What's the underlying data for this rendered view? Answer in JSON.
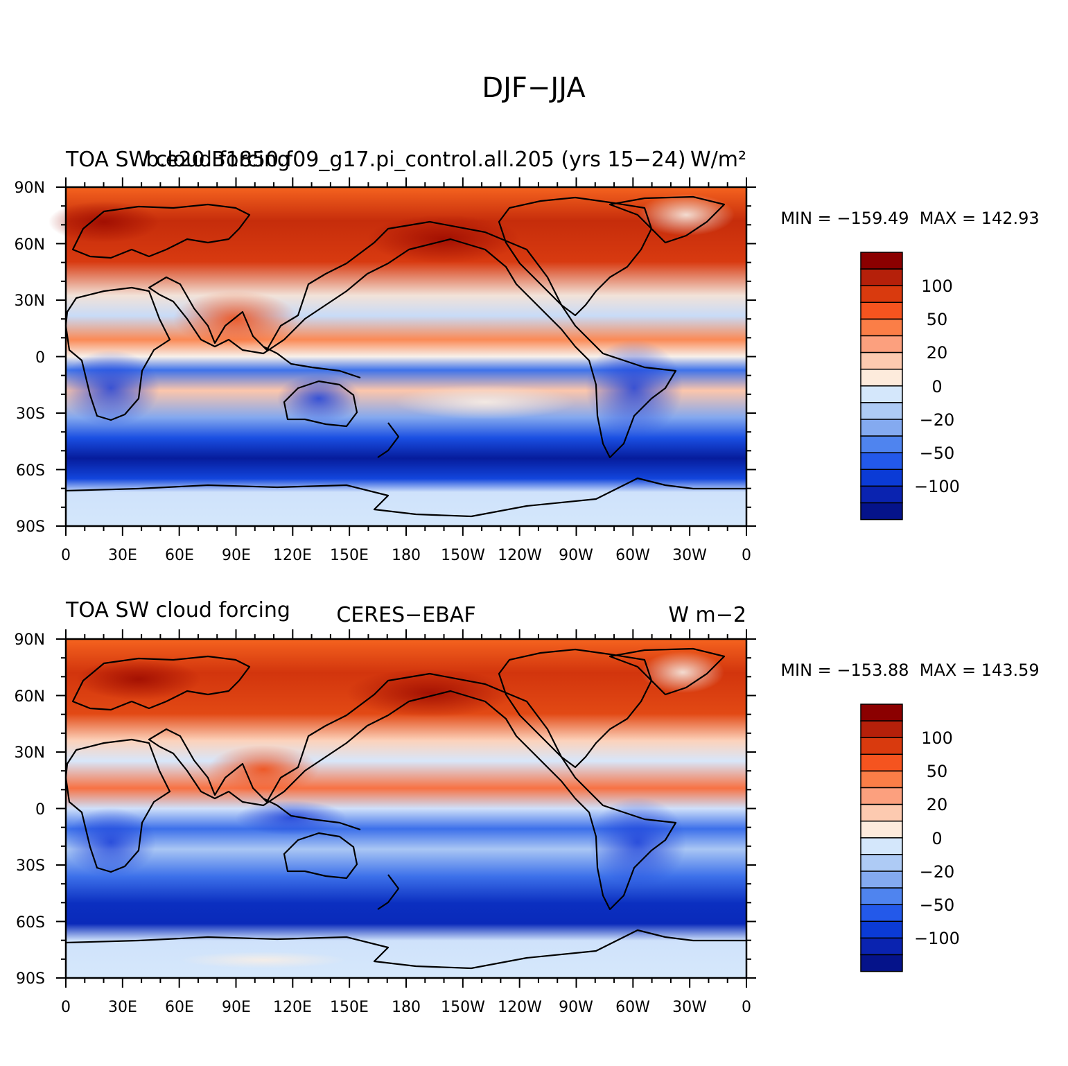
{
  "figure": {
    "title": "DJF−JJA"
  },
  "panels": [
    {
      "left_title": "TOA SW cloud forcing",
      "center_title": "b.e20.B1850.f09_g17.pi_control.all.205 (yrs 15−24)",
      "units": "W/m²",
      "min_max": "MIN = −159.49  MAX = 142.93"
    },
    {
      "left_title": "TOA SW cloud forcing",
      "center_title": "CERES−EBAF",
      "units": "W m−2",
      "min_max": "MIN = −153.88  MAX = 143.59"
    }
  ],
  "axes": {
    "lat_labels": [
      "90N",
      "60N",
      "30N",
      "0",
      "30S",
      "60S",
      "90S"
    ],
    "lon_labels": [
      "0",
      "30E",
      "60E",
      "90E",
      "120E",
      "150E",
      "180",
      "150W",
      "120W",
      "90W",
      "60W",
      "30W",
      "0"
    ]
  },
  "colorbar": {
    "labels": [
      "100",
      "50",
      "20",
      "0",
      "−20",
      "−50",
      "−100"
    ],
    "colors": [
      "#8b0000",
      "#b5200a",
      "#d93a0e",
      "#f5541f",
      "#fb7e47",
      "#fca07e",
      "#fdcab0",
      "#fdebdc",
      "#d4e7fb",
      "#aecbf5",
      "#84aaf0",
      "#4f84ef",
      "#2359ea",
      "#0b3bd6",
      "#0a23b0",
      "#05138a"
    ]
  }
}
